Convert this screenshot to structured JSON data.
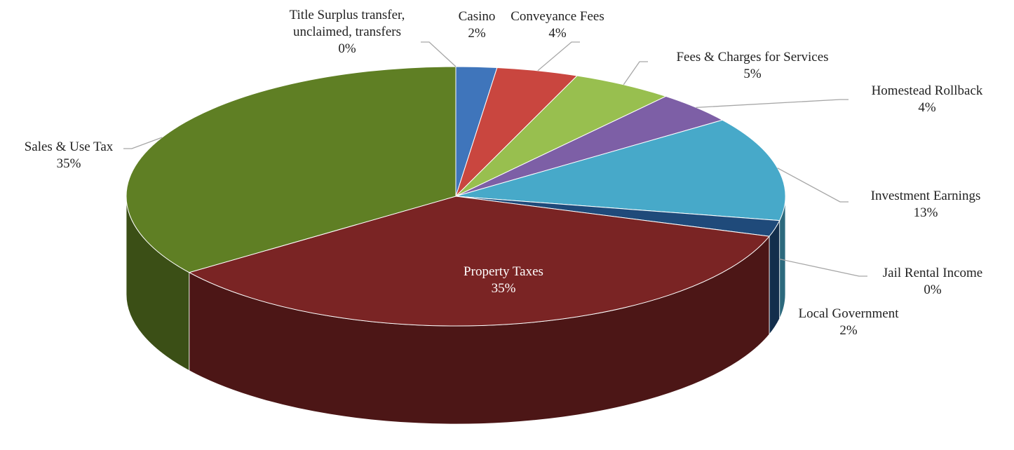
{
  "chart_data": {
    "type": "pie3d",
    "categories": [
      "Casino",
      "Conveyance Fees",
      "Fees & Charges for Services",
      "Homestead Rollback",
      "Investment Earnings",
      "Jail Rental Income",
      "Local Government",
      "Property Taxes",
      "Sales & Use Tax",
      "Title Surplus transfer, unclaimed, transfers"
    ],
    "values": [
      2,
      4,
      5,
      4,
      13,
      0,
      2,
      35,
      35,
      0
    ],
    "value_labels": [
      "2%",
      "4%",
      "5%",
      "4%",
      "13%",
      "0%",
      "2%",
      "35%",
      "35%",
      "0%"
    ],
    "colors": [
      "#3f75bb",
      "#c9463f",
      "#98bf4f",
      "#7d5fa6",
      "#47a9c9",
      "#2c5f8c",
      "#1f4a7a",
      "#7a2424",
      "#5f7f24",
      "#9db8d8"
    ]
  }
}
